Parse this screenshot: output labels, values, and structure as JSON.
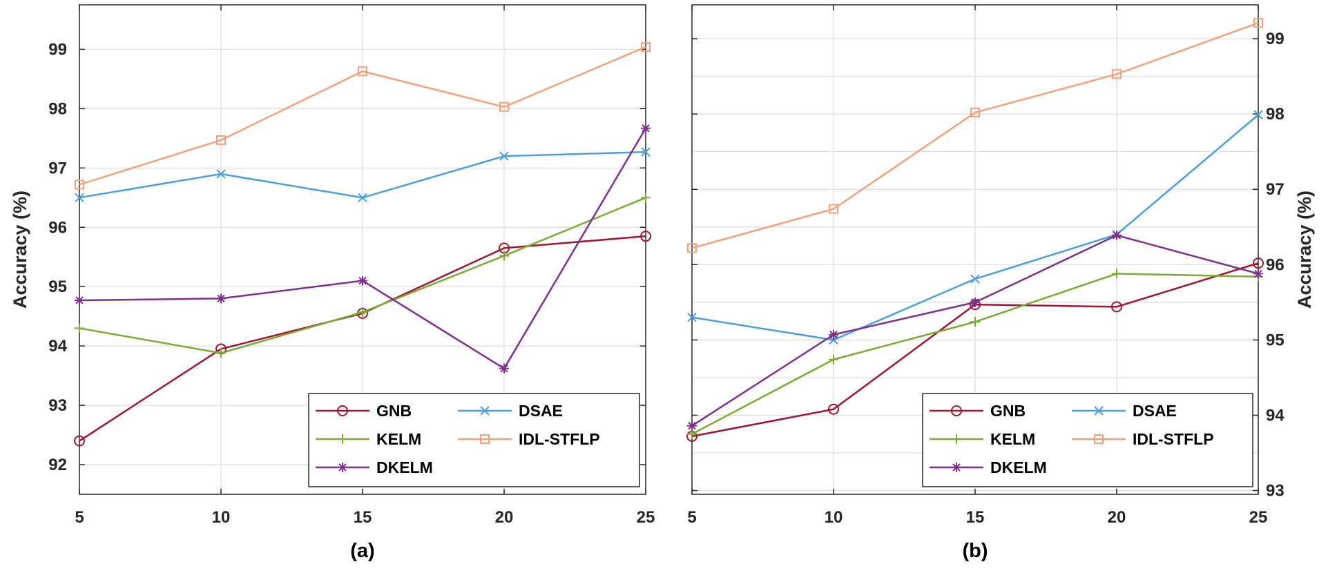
{
  "chart_data": [
    {
      "id": "a",
      "type": "line",
      "caption": "(a)",
      "ylabel": "Accuracy (%)",
      "ylabel_side": "left",
      "x": [
        5,
        10,
        15,
        20,
        25
      ],
      "xlim": [
        5,
        25
      ],
      "ylim": [
        91.5,
        99.75
      ],
      "xticks": [
        "5",
        "10",
        "15",
        "20",
        "25"
      ],
      "yticks": [
        92,
        93,
        94,
        95,
        96,
        97,
        98,
        99
      ],
      "ytick_labels": [
        "92",
        "93",
        "94",
        "95",
        "96",
        "97",
        "98",
        "99"
      ],
      "grid": true,
      "legend_position": "bottom-right",
      "series": [
        {
          "name": "GNB",
          "color": "#a2142f",
          "marker": "circle",
          "values": [
            92.4,
            93.95,
            94.55,
            95.65,
            95.85
          ]
        },
        {
          "name": "DSAE",
          "color": "#4a9ee0",
          "marker": "x",
          "values": [
            96.5,
            96.9,
            96.5,
            97.2,
            97.27
          ]
        },
        {
          "name": "KELM",
          "color": "#77ac30",
          "marker": "plus",
          "values": [
            94.3,
            93.88,
            94.57,
            95.52,
            96.5
          ]
        },
        {
          "name": "IDL-STFLP",
          "color": "#f4a07a",
          "marker": "square",
          "values": [
            96.72,
            97.47,
            98.63,
            98.03,
            99.04
          ]
        },
        {
          "name": "DKELM",
          "color": "#7e2f8e",
          "marker": "star",
          "values": [
            94.77,
            94.8,
            95.1,
            93.62,
            97.67
          ]
        }
      ]
    },
    {
      "id": "b",
      "type": "line",
      "caption": "(b)",
      "ylabel": "Accuracy (%)",
      "ylabel_side": "right",
      "x": [
        5,
        10,
        15,
        20,
        25
      ],
      "xlim": [
        5,
        25
      ],
      "ylim": [
        92.95,
        99.45
      ],
      "xticks": [
        "5",
        "10",
        "15",
        "20",
        "25"
      ],
      "yticks": [
        93,
        94,
        95,
        96,
        97,
        98,
        99
      ],
      "ytick_labels": [
        "93",
        "94",
        "95",
        "96",
        "97",
        "98",
        "99"
      ],
      "grid_lines": [
        93,
        93.5,
        94,
        94.5,
        95,
        95.5,
        96,
        96.5,
        97,
        97.5,
        98,
        98.5,
        99
      ],
      "grid": true,
      "legend_position": "bottom-right",
      "series": [
        {
          "name": "GNB",
          "color": "#a2142f",
          "marker": "circle",
          "values": [
            93.72,
            94.08,
            95.47,
            95.44,
            96.02
          ]
        },
        {
          "name": "DSAE",
          "color": "#4a9ee0",
          "marker": "x",
          "values": [
            95.3,
            95.0,
            95.81,
            96.4,
            97.99
          ]
        },
        {
          "name": "KELM",
          "color": "#77ac30",
          "marker": "plus",
          "values": [
            93.75,
            94.74,
            95.24,
            95.88,
            95.84
          ]
        },
        {
          "name": "IDL-STFLP",
          "color": "#f4a07a",
          "marker": "square",
          "values": [
            96.22,
            96.74,
            98.02,
            98.53,
            99.21
          ]
        },
        {
          "name": "DKELM",
          "color": "#7e2f8e",
          "marker": "star",
          "values": [
            93.86,
            95.07,
            95.5,
            96.39,
            95.88
          ]
        }
      ]
    }
  ]
}
